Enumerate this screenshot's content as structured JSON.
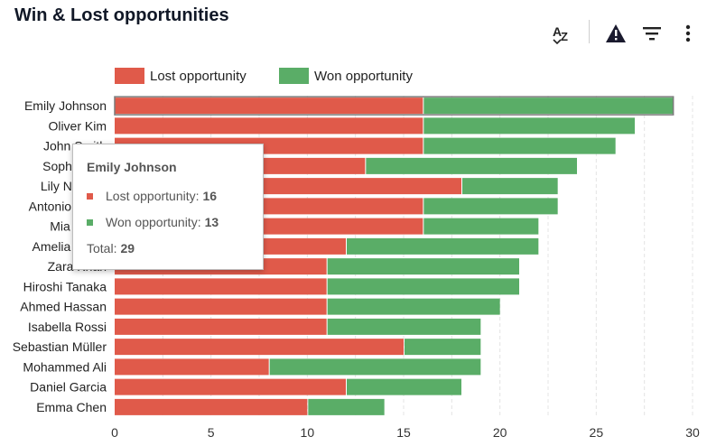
{
  "header": {
    "title": "Win & Lost opportunities",
    "toolbar": {
      "sort_icon": "sort-az-icon",
      "alert_icon": "warning-icon",
      "filter_icon": "filter-icon",
      "more_icon": "more-vertical-icon"
    }
  },
  "chart_data": {
    "type": "bar",
    "orientation": "horizontal",
    "stacked": true,
    "categories": [
      "Emily Johnson",
      "Oliver Kim",
      "John Smith",
      "Sophia Lee",
      "Lily Nguyen",
      "Antonio Rossi",
      "Mia Wong",
      "Amelia White",
      "Zara Khan",
      "Hiroshi Tanaka",
      "Ahmed Hassan",
      "Isabella Rossi",
      "Sebastian Müller",
      "Mohammed Ali",
      "Daniel Garcia",
      "Emma Chen"
    ],
    "series": [
      {
        "name": "Lost opportunity",
        "color": "#e05a4a",
        "values": [
          16,
          16,
          16,
          13,
          18,
          16,
          16,
          12,
          11,
          11,
          11,
          11,
          15,
          8,
          12,
          10
        ]
      },
      {
        "name": "Won opportunity",
        "color": "#5aad67",
        "values": [
          13,
          11,
          10,
          11,
          5,
          7,
          6,
          10,
          10,
          10,
          9,
          8,
          4,
          11,
          6,
          4
        ]
      }
    ],
    "xlim": [
      0,
      30
    ],
    "xticks": [
      "0",
      "5",
      "10",
      "15",
      "20",
      "25",
      "30"
    ],
    "grid": "vertical-dashed",
    "legend_position": "top-left",
    "highlighted_category": "Emily Johnson"
  },
  "tooltip": {
    "title": "Emily Johnson",
    "lost_label": "Lost opportunity:",
    "lost_value": "16",
    "won_label": "Won opportunity:",
    "won_value": "13",
    "total_label": "Total:",
    "total_value": "29"
  }
}
